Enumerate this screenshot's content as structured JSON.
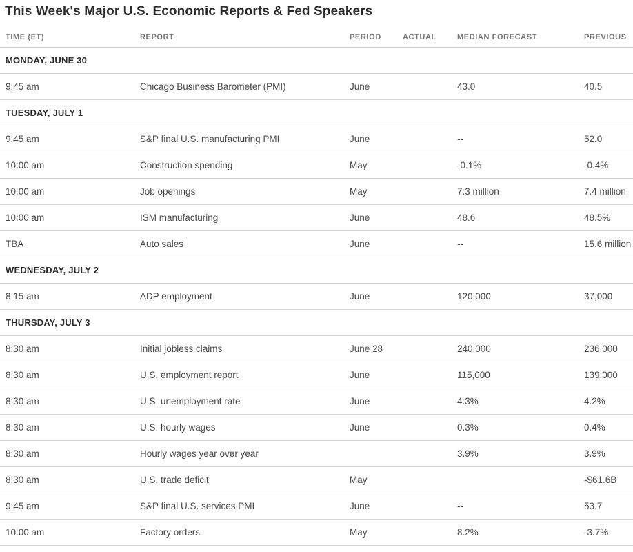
{
  "title": "This Week's Major U.S. Economic Reports & Fed Speakers",
  "table": {
    "columns": [
      {
        "key": "time",
        "label": "TIME (ET)"
      },
      {
        "key": "report",
        "label": "REPORT"
      },
      {
        "key": "period",
        "label": "PERIOD"
      },
      {
        "key": "actual",
        "label": "ACTUAL"
      },
      {
        "key": "median_forecast",
        "label": "MEDIAN FORECAST"
      },
      {
        "key": "previous",
        "label": "PREVIOUS"
      }
    ],
    "sections": [
      {
        "label": "MONDAY, JUNE 30",
        "rows": [
          {
            "time": "9:45 am",
            "report": "Chicago Business Barometer (PMI)",
            "period": "June",
            "actual": "",
            "median_forecast": "43.0",
            "previous": "40.5"
          }
        ]
      },
      {
        "label": "TUESDAY, JULY 1",
        "rows": [
          {
            "time": "9:45 am",
            "report": "S&P final U.S. manufacturing PMI",
            "period": "June",
            "actual": "",
            "median_forecast": "--",
            "previous": "52.0"
          },
          {
            "time": "10:00 am",
            "report": "Construction spending",
            "period": "May",
            "actual": "",
            "median_forecast": "-0.1%",
            "previous": "-0.4%"
          },
          {
            "time": "10:00 am",
            "report": "Job openings",
            "period": "May",
            "actual": "",
            "median_forecast": "7.3 million",
            "previous": "7.4 million"
          },
          {
            "time": "10:00 am",
            "report": "ISM manufacturing",
            "period": "June",
            "actual": "",
            "median_forecast": "48.6",
            "previous": "48.5%"
          },
          {
            "time": "TBA",
            "report": "Auto sales",
            "period": "June",
            "actual": "",
            "median_forecast": "--",
            "previous": "15.6 million"
          }
        ]
      },
      {
        "label": "WEDNESDAY, JULY 2",
        "rows": [
          {
            "time": "8:15 am",
            "report": "ADP employment",
            "period": "June",
            "actual": "",
            "median_forecast": "120,000",
            "previous": "37,000"
          }
        ]
      },
      {
        "label": "THURSDAY, JULY 3",
        "rows": [
          {
            "time": "8:30 am",
            "report": "Initial jobless claims",
            "period": "June 28",
            "actual": "",
            "median_forecast": "240,000",
            "previous": "236,000"
          },
          {
            "time": "8:30 am",
            "report": "U.S. employment report",
            "period": "June",
            "actual": "",
            "median_forecast": "115,000",
            "previous": "139,000"
          },
          {
            "time": "8:30 am",
            "report": "U.S. unemployment rate",
            "period": "June",
            "actual": "",
            "median_forecast": "4.3%",
            "previous": "4.2%"
          },
          {
            "time": "8:30 am",
            "report": "U.S. hourly wages",
            "period": "June",
            "actual": "",
            "median_forecast": "0.3%",
            "previous": "0.4%"
          },
          {
            "time": "8:30 am",
            "report": "Hourly wages year over year",
            "period": "",
            "actual": "",
            "median_forecast": "3.9%",
            "previous": "3.9%"
          },
          {
            "time": "8:30 am",
            "report": "U.S. trade deficit",
            "period": "May",
            "actual": "",
            "median_forecast": "",
            "previous": "-$61.6B"
          },
          {
            "time": "9:45 am",
            "report": "S&P final U.S. services PMI",
            "period": "June",
            "actual": "",
            "median_forecast": "--",
            "previous": "53.7"
          },
          {
            "time": "10:00 am",
            "report": "Factory orders",
            "period": "May",
            "actual": "",
            "median_forecast": "8.2%",
            "previous": "-3.7%"
          }
        ]
      }
    ]
  },
  "colors": {
    "title_text": "#2b2b2b",
    "header_text": "#777777",
    "body_text": "#4a4a4a",
    "row_border": "#d6d6d6"
  }
}
